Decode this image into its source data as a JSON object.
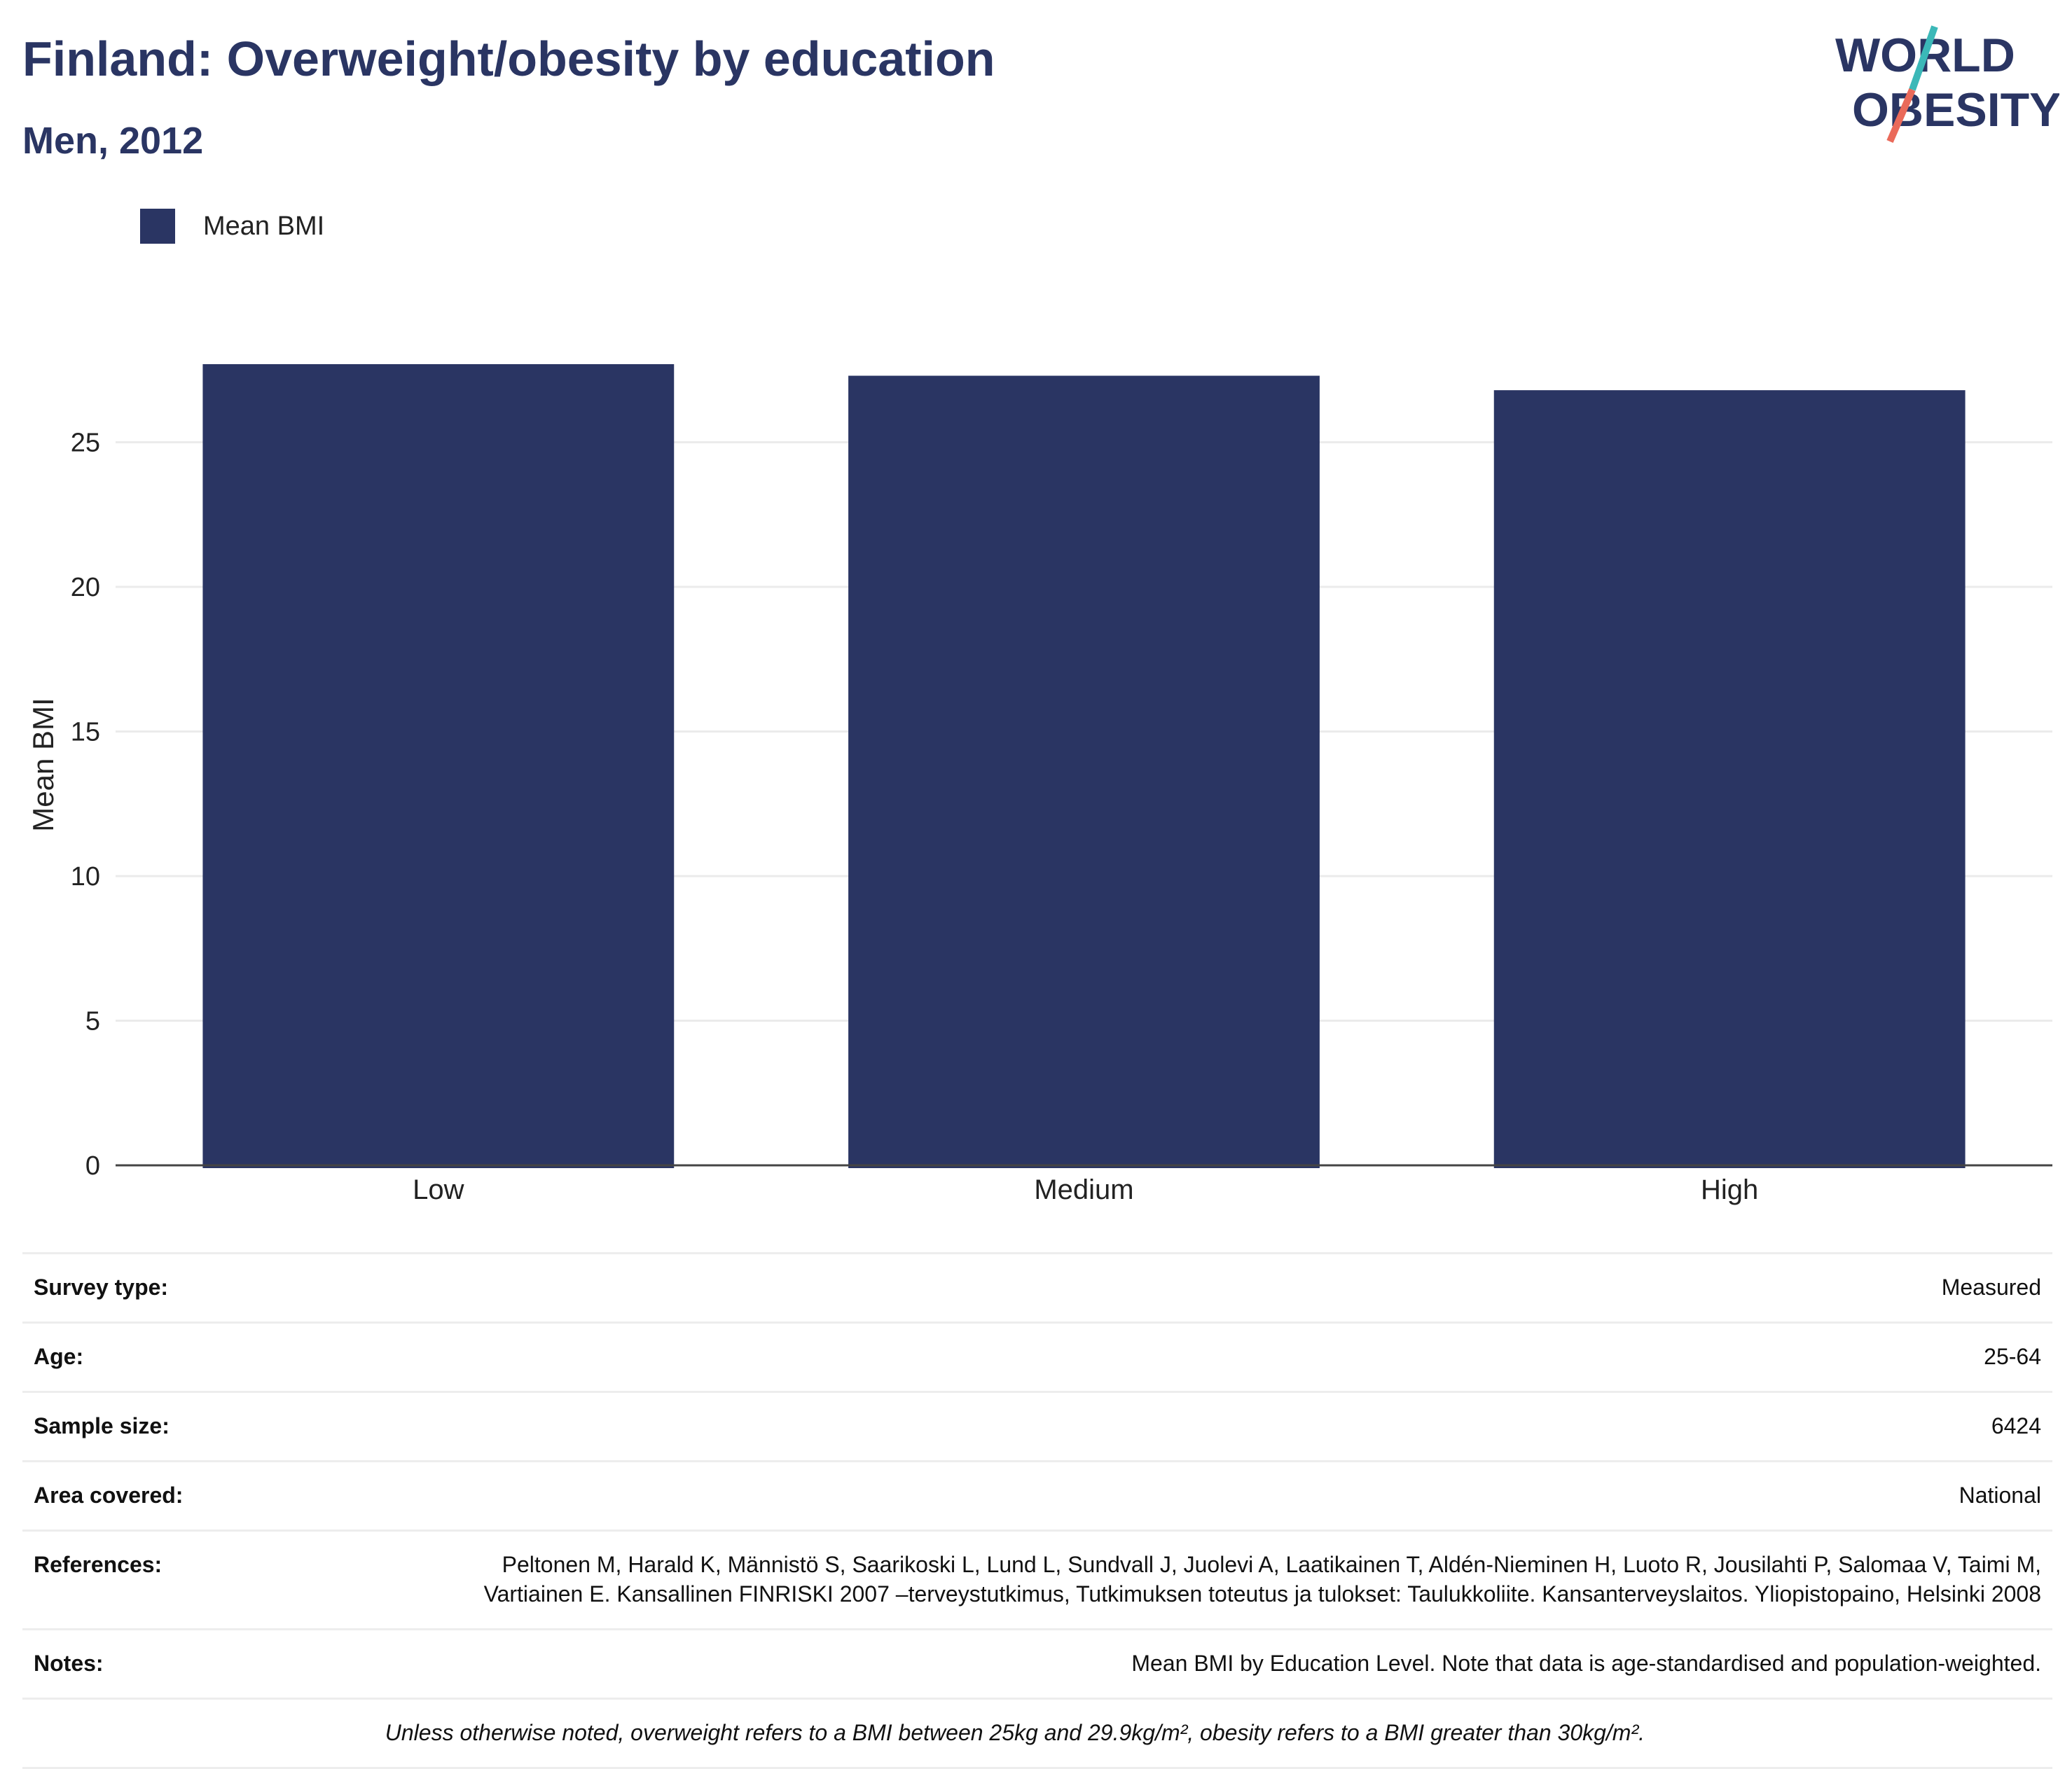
{
  "header": {
    "title": "Finland: Overweight/obesity by education",
    "subtitle": "Men, 2012"
  },
  "logo": {
    "line1": "WORLD",
    "line2": "OBESITY",
    "colors": {
      "text": "#2a3563",
      "slash_teal": "#3bb8b8",
      "slash_coral": "#ea6a5a"
    }
  },
  "legend": {
    "label": "Mean BMI",
    "color": "#2a3563"
  },
  "chart_data": {
    "type": "bar",
    "categories": [
      "Low",
      "Medium",
      "High"
    ],
    "series": [
      {
        "name": "Mean BMI",
        "values": [
          27.7,
          27.3,
          26.8
        ],
        "color": "#2a3563"
      }
    ],
    "ylabel": "Mean BMI",
    "ylim": [
      0,
      27.7
    ],
    "yticks": [
      0,
      5,
      10,
      15,
      20,
      25
    ],
    "grid": true,
    "legend_position": "top-left"
  },
  "meta": {
    "rows": [
      {
        "key": "Survey type:",
        "value": "Measured"
      },
      {
        "key": "Age:",
        "value": "25-64"
      },
      {
        "key": "Sample size:",
        "value": "6424"
      },
      {
        "key": "Area covered:",
        "value": "National"
      },
      {
        "key": "References:",
        "value": "Peltonen M, Harald K, Männistö S, Saarikoski L, Lund L, Sundvall J, Juolevi A, Laatikainen T, Aldén-Nieminen H, Luoto R, Jousilahti P, Salomaa V, Taimi M, Vartiainen E. Kansallinen FINRISKI 2007 –terveystutkimus, Tutkimuksen toteutus ja tulokset: Taulukkoliite. Kansanterveyslaitos. Yliopistopaino, Helsinki 2008"
      },
      {
        "key": "Notes:",
        "value": "Mean BMI by Education Level. Note that data is age-standardised and population-weighted."
      }
    ],
    "footnote": "Unless otherwise noted, overweight refers to a BMI between 25kg and 29.9kg/m², obesity refers to a BMI greater than 30kg/m²."
  }
}
